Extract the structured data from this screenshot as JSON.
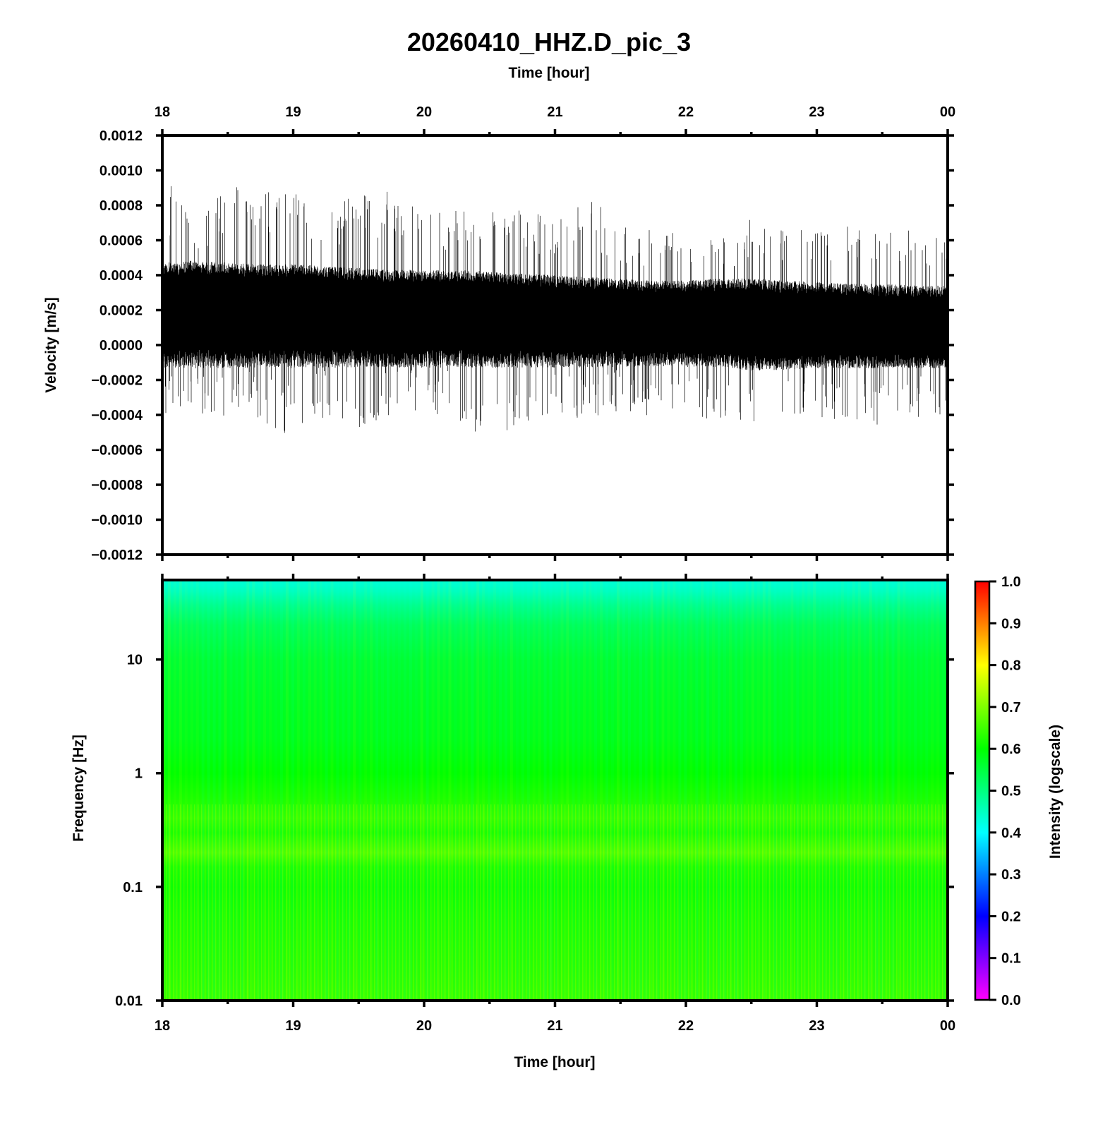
{
  "chart_data": [
    {
      "type": "line",
      "title": "20260410_HHZ.D_pic_3",
      "top_xlabel": "Time [hour]",
      "xlabel": "",
      "ylabel": "Velocity [m/s]",
      "x_ticks": [
        "18",
        "19",
        "20",
        "21",
        "22",
        "23",
        "00"
      ],
      "xlim": [
        18,
        24
      ],
      "ylim": [
        -0.0012,
        0.0012
      ],
      "y_ticks": [
        "0.0012",
        "0.0010",
        "0.0008",
        "0.0006",
        "0.0004",
        "0.0002",
        "0.0000",
        "−0.0002",
        "−0.0004",
        "−0.0006",
        "−0.0008",
        "−0.0010",
        "−0.0012"
      ],
      "y_tick_values": [
        0.0012,
        0.001,
        0.0008,
        0.0006,
        0.0004,
        0.0002,
        0,
        -0.0002,
        -0.0004,
        -0.0006,
        -0.0008,
        -0.001,
        -0.0012
      ],
      "series": [
        {
          "x_hours": [
            18.0,
            18.25,
            18.5,
            18.75,
            19.0,
            19.25,
            19.5,
            19.75,
            20.0,
            20.25,
            20.5,
            20.75,
            21.0,
            21.25,
            21.5,
            21.75,
            22.0,
            22.25,
            22.5,
            22.75,
            23.0,
            23.25,
            23.5,
            23.75,
            24.0
          ],
          "center": [
            0.00022,
            0.00022,
            0.00022,
            0.00022,
            0.00022,
            0.00021,
            0.00021,
            0.0002,
            0.0002,
            0.0002,
            0.0002,
            0.00019,
            0.00018,
            0.00018,
            0.00017,
            0.00016,
            0.00016,
            0.00015,
            0.00015,
            0.00014,
            0.00013,
            0.00013,
            0.00012,
            0.00012,
            0.00012
          ],
          "dense_band_upper": [
            0.00045,
            0.00046,
            0.00045,
            0.00044,
            0.00044,
            0.00043,
            0.00042,
            0.00041,
            0.00041,
            0.00041,
            0.0004,
            0.00039,
            0.00038,
            0.00037,
            0.00036,
            0.00035,
            0.00035,
            0.00036,
            0.00036,
            0.00035,
            0.00034,
            0.00033,
            0.00033,
            0.00032,
            0.00032
          ],
          "dense_band_lower": [
            -0.0001,
            -0.0001,
            -0.0001,
            -0.0001,
            -0.0001,
            -0.0001,
            -0.0001,
            -0.0001,
            -0.0001,
            -0.0001,
            -0.0001,
            -0.0001,
            -0.0001,
            -0.0001,
            -0.0001,
            -0.0001,
            -0.0001,
            -0.0001,
            -0.00012,
            -0.00012,
            -0.00011,
            -0.00011,
            -0.00011,
            -0.00011,
            -0.00011
          ],
          "envelope_upper": [
            0.00103,
            0.00072,
            0.00094,
            0.00088,
            0.00088,
            0.00078,
            0.00087,
            0.00089,
            0.00078,
            0.00077,
            0.00077,
            0.00079,
            0.00074,
            0.00086,
            0.0007,
            0.00068,
            0.00066,
            0.00063,
            0.00075,
            0.00067,
            0.00076,
            0.00071,
            0.00068,
            0.00069,
            0.00066
          ],
          "envelope_lower": [
            -0.00045,
            -0.0004,
            -0.00041,
            -0.00043,
            -0.00053,
            -0.00042,
            -0.0005,
            -0.0004,
            -0.0004,
            -0.00041,
            -0.00064,
            -0.00044,
            -0.00042,
            -0.00042,
            -0.00038,
            -0.00043,
            -0.00042,
            -0.00043,
            -0.00044,
            -0.00047,
            -0.00046,
            -0.00042,
            -0.00048,
            -0.00043,
            -0.0004
          ]
        }
      ]
    },
    {
      "type": "heatmap",
      "xlabel": "Time [hour]",
      "ylabel": "Frequency [Hz]",
      "x_ticks": [
        "18",
        "19",
        "20",
        "21",
        "22",
        "23",
        "00"
      ],
      "xlim": [
        18,
        24
      ],
      "y_scale": "log",
      "ylim": [
        0.01,
        50
      ],
      "y_ticks": [
        "10",
        "1",
        "0.1",
        "0.01"
      ],
      "y_tick_values": [
        10,
        1,
        0.1,
        0.01
      ],
      "colorbar": {
        "label": "Intensity (logscale)",
        "ticks": [
          "1.0",
          "0.9",
          "0.8",
          "0.7",
          "0.6",
          "0.5",
          "0.4",
          "0.3",
          "0.2",
          "0.1",
          "0.0"
        ],
        "tick_values": [
          1.0,
          0.9,
          0.8,
          0.7,
          0.6,
          0.5,
          0.4,
          0.3,
          0.2,
          0.1,
          0.0
        ],
        "range": [
          0,
          1
        ],
        "colormap": [
          "#ff00ff",
          "#0000ff",
          "#00ffff",
          "#00ff00",
          "#ffff00",
          "#ff0000"
        ]
      },
      "intensity_profile": {
        "frequency_hz": [
          50,
          40,
          30,
          20,
          10,
          5,
          2,
          1,
          0.6,
          0.4,
          0.3,
          0.2,
          0.15,
          0.1,
          0.05,
          0.02,
          0.01
        ],
        "intensity": [
          0.43,
          0.45,
          0.49,
          0.53,
          0.56,
          0.57,
          0.58,
          0.6,
          0.62,
          0.64,
          0.62,
          0.66,
          0.62,
          0.61,
          0.62,
          0.63,
          0.64
        ]
      }
    }
  ]
}
